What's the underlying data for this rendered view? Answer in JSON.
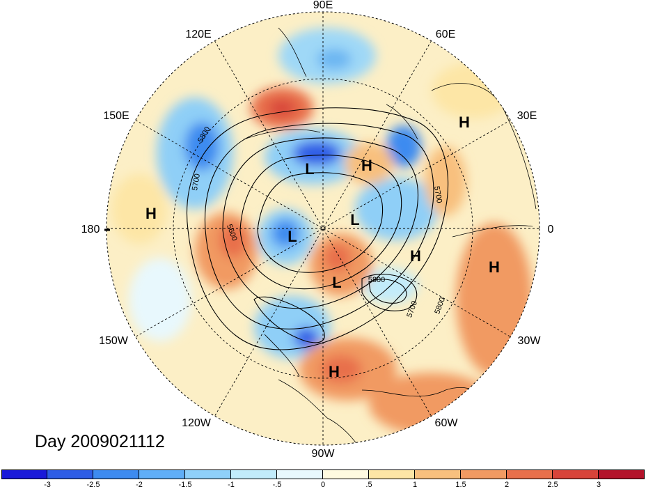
{
  "title": "Day 2009021112",
  "longitude_labels": [
    {
      "id": "lon-90e",
      "text": "90E"
    },
    {
      "id": "lon-60e",
      "text": "60E"
    },
    {
      "id": "lon-30e",
      "text": "30E"
    },
    {
      "id": "lon-0",
      "text": "0"
    },
    {
      "id": "lon-30w",
      "text": "30W"
    },
    {
      "id": "lon-60w",
      "text": "60W"
    },
    {
      "id": "lon-90w",
      "text": "90W"
    },
    {
      "id": "lon-120w",
      "text": "120W"
    },
    {
      "id": "lon-150w",
      "text": "150W"
    },
    {
      "id": "lon-180",
      "text": "180"
    },
    {
      "id": "lon-150e",
      "text": "150E"
    },
    {
      "id": "lon-120e",
      "text": "120E"
    }
  ],
  "pressure_centers": [
    {
      "text": "H"
    },
    {
      "text": "H"
    },
    {
      "text": "H"
    },
    {
      "text": "H"
    },
    {
      "text": "H"
    },
    {
      "text": "H"
    },
    {
      "text": "L"
    },
    {
      "text": "L"
    },
    {
      "text": "L"
    },
    {
      "text": "L"
    }
  ],
  "contour_labels": [
    "5800",
    "5700",
    "5600",
    "5700",
    "5800",
    "5700",
    "5800"
  ],
  "colorbar": {
    "colors": [
      "#1a1ad9",
      "#2e5de6",
      "#3d8bf0",
      "#60aef7",
      "#8fd0fa",
      "#c2ecfb",
      "#e8f8fd",
      "#fffbe0",
      "#fde6a6",
      "#f8c07e",
      "#f19a62",
      "#e8704b",
      "#d8443a",
      "#b3132a"
    ],
    "ticks": [
      "-3",
      "-2.5",
      "-2",
      "-1.5",
      "-1",
      "-.5",
      "0",
      ".5",
      "1",
      "1.5",
      "2",
      "2.5",
      "3"
    ]
  }
}
